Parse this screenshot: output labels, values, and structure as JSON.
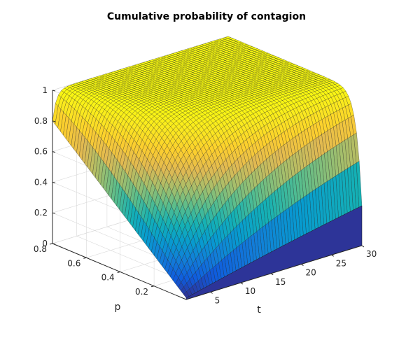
{
  "chart_data": {
    "type": "surface",
    "title": "Cumulative probability of contagion",
    "xlabel": "t",
    "ylabel": "p",
    "zlabel": "",
    "x_ticks": [
      "5",
      "10",
      "15",
      "20",
      "25",
      "30"
    ],
    "y_ticks": [
      "0.2",
      "0.4",
      "0.6",
      "0.8"
    ],
    "z_ticks": [
      "0",
      "0.2",
      "0.4",
      "0.6",
      "0.8",
      "1"
    ],
    "xlim": [
      1,
      30
    ],
    "ylim": [
      0.01,
      0.8
    ],
    "zlim": [
      0,
      1
    ],
    "function": "P(t, p) = 1 - (1 - p)^t",
    "grid": true,
    "colormap": "parula",
    "samples": {
      "t": [
        1,
        5,
        10,
        15,
        20,
        25,
        30
      ],
      "p": [
        0.05,
        0.2,
        0.4,
        0.6,
        0.8
      ],
      "z": [
        [
          0.05,
          0.23,
          0.4,
          0.54,
          0.64,
          0.72,
          0.79
        ],
        [
          0.2,
          0.67,
          0.89,
          0.96,
          0.99,
          1.0,
          1.0
        ],
        [
          0.4,
          0.92,
          0.99,
          1.0,
          1.0,
          1.0,
          1.0
        ],
        [
          0.6,
          0.99,
          1.0,
          1.0,
          1.0,
          1.0,
          1.0
        ],
        [
          0.8,
          1.0,
          1.0,
          1.0,
          1.0,
          1.0,
          1.0
        ]
      ]
    }
  }
}
